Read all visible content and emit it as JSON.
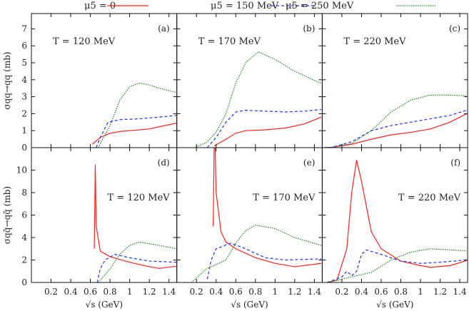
{
  "legend": [
    {
      "label": "μ5 = 0",
      "color": "#ff2020",
      "style": "solid"
    },
    {
      "label": "μ5 = 150 MeV",
      "color": "#2030ff",
      "style": "dashed"
    },
    {
      "label": "μ5 = 250 MeV",
      "color": "#208020",
      "style": "dotted"
    }
  ],
  "chart_data": [
    {
      "type": "line",
      "panel": "(a)",
      "annotation": "T = 120 MeV",
      "ylabel": "σqq→qq (mb)",
      "xlim": [
        0,
        1.48
      ],
      "ylim": [
        0,
        7.9
      ],
      "yticks": [
        0,
        1,
        2,
        3,
        4,
        5,
        6,
        7
      ],
      "xticks": [
        0.2,
        0.4,
        0.6,
        0.8,
        1,
        1.2,
        1.4
      ],
      "series": [
        {
          "legend": 0,
          "x": [
            0.62,
            0.7,
            0.8,
            0.9,
            1.0,
            1.2,
            1.4,
            1.48
          ],
          "y": [
            0.2,
            0.6,
            0.85,
            0.95,
            1.0,
            1.1,
            1.35,
            1.45
          ]
        },
        {
          "legend": 1,
          "x": [
            0.66,
            0.7,
            0.78,
            0.9,
            1.1,
            1.3,
            1.48
          ],
          "y": [
            0,
            0.6,
            1.5,
            1.65,
            1.7,
            1.8,
            1.9
          ]
        },
        {
          "legend": 2,
          "x": [
            0.68,
            0.8,
            0.9,
            1.0,
            1.1,
            1.2,
            1.3,
            1.48
          ],
          "y": [
            0,
            1.3,
            2.8,
            3.6,
            3.8,
            3.7,
            3.5,
            3.25
          ]
        }
      ]
    },
    {
      "type": "line",
      "panel": "(b)",
      "annotation": "T = 170 MeV",
      "xlim": [
        0,
        1.48
      ],
      "ylim": [
        0,
        7.9
      ],
      "xticks": [
        0.2,
        0.4,
        0.6,
        0.8,
        1,
        1.2,
        1.4
      ],
      "series": [
        {
          "legend": 0,
          "x": [
            0.38,
            0.5,
            0.6,
            0.7,
            0.9,
            1.1,
            1.3,
            1.47
          ],
          "y": [
            0.1,
            0.5,
            0.85,
            1.0,
            1.05,
            1.15,
            1.4,
            1.8
          ]
        },
        {
          "legend": 1,
          "x": [
            0.31,
            0.4,
            0.5,
            0.6,
            0.7,
            0.9,
            1.1,
            1.3,
            1.47
          ],
          "y": [
            0,
            0.6,
            1.5,
            2.1,
            2.2,
            2.15,
            2.1,
            2.15,
            2.25
          ]
        },
        {
          "legend": 2,
          "x": [
            0.18,
            0.3,
            0.4,
            0.5,
            0.6,
            0.7,
            0.83,
            1.0,
            1.2,
            1.47
          ],
          "y": [
            0,
            0.3,
            0.9,
            2.0,
            3.8,
            5.0,
            5.65,
            5.2,
            4.5,
            3.78
          ]
        }
      ]
    },
    {
      "type": "line",
      "panel": "(c)",
      "annotation": "T = 220 MeV",
      "xlim": [
        0,
        1.48
      ],
      "ylim": [
        0,
        7.9
      ],
      "xticks": [
        0.2,
        0.4,
        0.6,
        0.8,
        1,
        1.2,
        1.4
      ],
      "series": [
        {
          "legend": 0,
          "x": [
            0.02,
            0.1,
            0.3,
            0.5,
            0.7,
            0.9,
            1.1,
            1.3,
            1.47
          ],
          "y": [
            0,
            0.02,
            0.2,
            0.5,
            0.75,
            0.9,
            1.1,
            1.5,
            2.0
          ]
        },
        {
          "legend": 1,
          "x": [
            0.02,
            0.1,
            0.3,
            0.5,
            0.7,
            0.9,
            1.1,
            1.3,
            1.47
          ],
          "y": [
            0,
            0.02,
            0.35,
            1.0,
            1.3,
            1.5,
            1.7,
            1.9,
            2.2
          ]
        },
        {
          "legend": 2,
          "x": [
            0.02,
            0.1,
            0.3,
            0.5,
            0.7,
            0.9,
            1.1,
            1.3,
            1.47
          ],
          "y": [
            0,
            0.02,
            0.25,
            1.0,
            2.1,
            2.8,
            3.1,
            3.1,
            3.05
          ]
        }
      ]
    },
    {
      "type": "line",
      "panel": "(d)",
      "annotation": "T = 120 MeV",
      "ylabel": "σqq̄→qq̄ (mb)",
      "xlabel": "√s (GeV)",
      "xlim": [
        0,
        1.48
      ],
      "ylim": [
        0,
        12
      ],
      "yticks": [
        0,
        2,
        4,
        6,
        8,
        10
      ],
      "xticks": [
        0.2,
        0.4,
        0.6,
        0.8,
        1,
        1.2,
        1.4
      ],
      "series": [
        {
          "legend": 0,
          "x": [
            0.64,
            0.65,
            0.66,
            0.7,
            0.8,
            1.0,
            1.2,
            1.3,
            1.48
          ],
          "y": [
            3.0,
            10.5,
            5.0,
            2.8,
            2.3,
            1.8,
            1.4,
            1.25,
            1.45
          ]
        },
        {
          "legend": 1,
          "x": [
            0.67,
            0.7,
            0.75,
            0.85,
            1.0,
            1.2,
            1.48
          ],
          "y": [
            0,
            1.2,
            2.0,
            2.5,
            2.2,
            1.9,
            1.8
          ]
        },
        {
          "legend": 2,
          "x": [
            0.68,
            0.8,
            0.9,
            1.0,
            1.1,
            1.3,
            1.48
          ],
          "y": [
            0,
            1.2,
            2.5,
            3.3,
            3.6,
            3.3,
            3.0
          ]
        }
      ]
    },
    {
      "type": "line",
      "panel": "(e)",
      "annotation": "T = 170 MeV",
      "xlabel": "√s (GeV)",
      "xlim": [
        0,
        1.48
      ],
      "ylim": [
        0,
        12
      ],
      "xticks": [
        0.2,
        0.4,
        0.6,
        0.8,
        1,
        1.2,
        1.4
      ],
      "series": [
        {
          "legend": 0,
          "x": [
            0.37,
            0.38,
            0.39,
            0.4,
            0.45,
            0.5,
            0.6,
            0.8,
            1.0,
            1.2,
            1.47
          ],
          "y": [
            5.0,
            12,
            12,
            8,
            4.5,
            3.6,
            3.0,
            2.2,
            1.7,
            1.4,
            1.7
          ]
        },
        {
          "legend": 1,
          "x": [
            0.31,
            0.35,
            0.4,
            0.55,
            0.7,
            0.9,
            1.1,
            1.47
          ],
          "y": [
            0.3,
            2.0,
            3.0,
            3.5,
            3.0,
            2.2,
            2.0,
            2.1
          ]
        },
        {
          "legend": 2,
          "x": [
            0.15,
            0.3,
            0.5,
            0.6,
            0.7,
            0.8,
            1.0,
            1.2,
            1.47
          ],
          "y": [
            0,
            1.2,
            2.0,
            3.5,
            4.6,
            5.1,
            4.8,
            4.0,
            3.3
          ]
        }
      ]
    },
    {
      "type": "line",
      "panel": "(f)",
      "annotation": "T = 220 MeV",
      "xlabel": "√s (GeV)",
      "xlim": [
        0,
        1.48
      ],
      "ylim": [
        0,
        12
      ],
      "xticks": [
        0.2,
        0.4,
        0.6,
        0.8,
        1,
        1.2,
        1.4
      ],
      "series": [
        {
          "legend": 0,
          "x": [
            0.05,
            0.15,
            0.25,
            0.3,
            0.35,
            0.4,
            0.5,
            0.6,
            0.8,
            1.0,
            1.1,
            1.3,
            1.47
          ],
          "y": [
            0,
            0.2,
            3,
            8,
            10.9,
            9,
            4.5,
            3.0,
            1.9,
            1.5,
            1.35,
            1.5,
            1.95
          ]
        },
        {
          "legend": 1,
          "x": [
            0.05,
            0.2,
            0.25,
            0.3,
            0.35,
            0.4,
            0.45,
            0.6,
            0.8,
            1.0,
            1.2,
            1.47
          ],
          "y": [
            0,
            0.5,
            1.0,
            0.6,
            1.0,
            2.5,
            2.9,
            2.5,
            1.9,
            1.7,
            1.8,
            2.0
          ]
        },
        {
          "legend": 2,
          "x": [
            0.05,
            0.3,
            0.5,
            0.7,
            0.9,
            1.1,
            1.3,
            1.47
          ],
          "y": [
            0,
            0.5,
            0.9,
            2.0,
            2.7,
            3.0,
            2.9,
            2.8
          ]
        }
      ]
    }
  ]
}
